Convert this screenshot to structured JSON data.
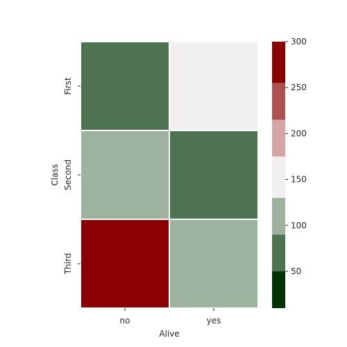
{
  "chart_data": {
    "type": "heatmap",
    "xlabel": "Alive",
    "ylabel": "Class",
    "x_categories": [
      "no",
      "yes"
    ],
    "y_categories": [
      "First",
      "Second",
      "Third"
    ],
    "values": [
      [
        80,
        136
      ],
      [
        97,
        87
      ],
      [
        372,
        119
      ]
    ],
    "colorbar": {
      "vmin": 10,
      "vmax": 300,
      "ticks": [
        50,
        100,
        150,
        200,
        250,
        300
      ],
      "bins": [
        {
          "from": 10,
          "to": 50,
          "color": "#003300"
        },
        {
          "from": 50,
          "to": 90,
          "color": "#4d7350"
        },
        {
          "from": 90,
          "to": 130,
          "color": "#9db39f"
        },
        {
          "from": 130,
          "to": 175,
          "color": "#f2eff0"
        },
        {
          "from": 175,
          "to": 215,
          "color": "#d3a5a5"
        },
        {
          "from": 215,
          "to": 255,
          "color": "#ad5151"
        },
        {
          "from": 255,
          "to": 300,
          "color": "#8b0000"
        }
      ]
    },
    "grid": true,
    "legend": "colorbar-right"
  }
}
